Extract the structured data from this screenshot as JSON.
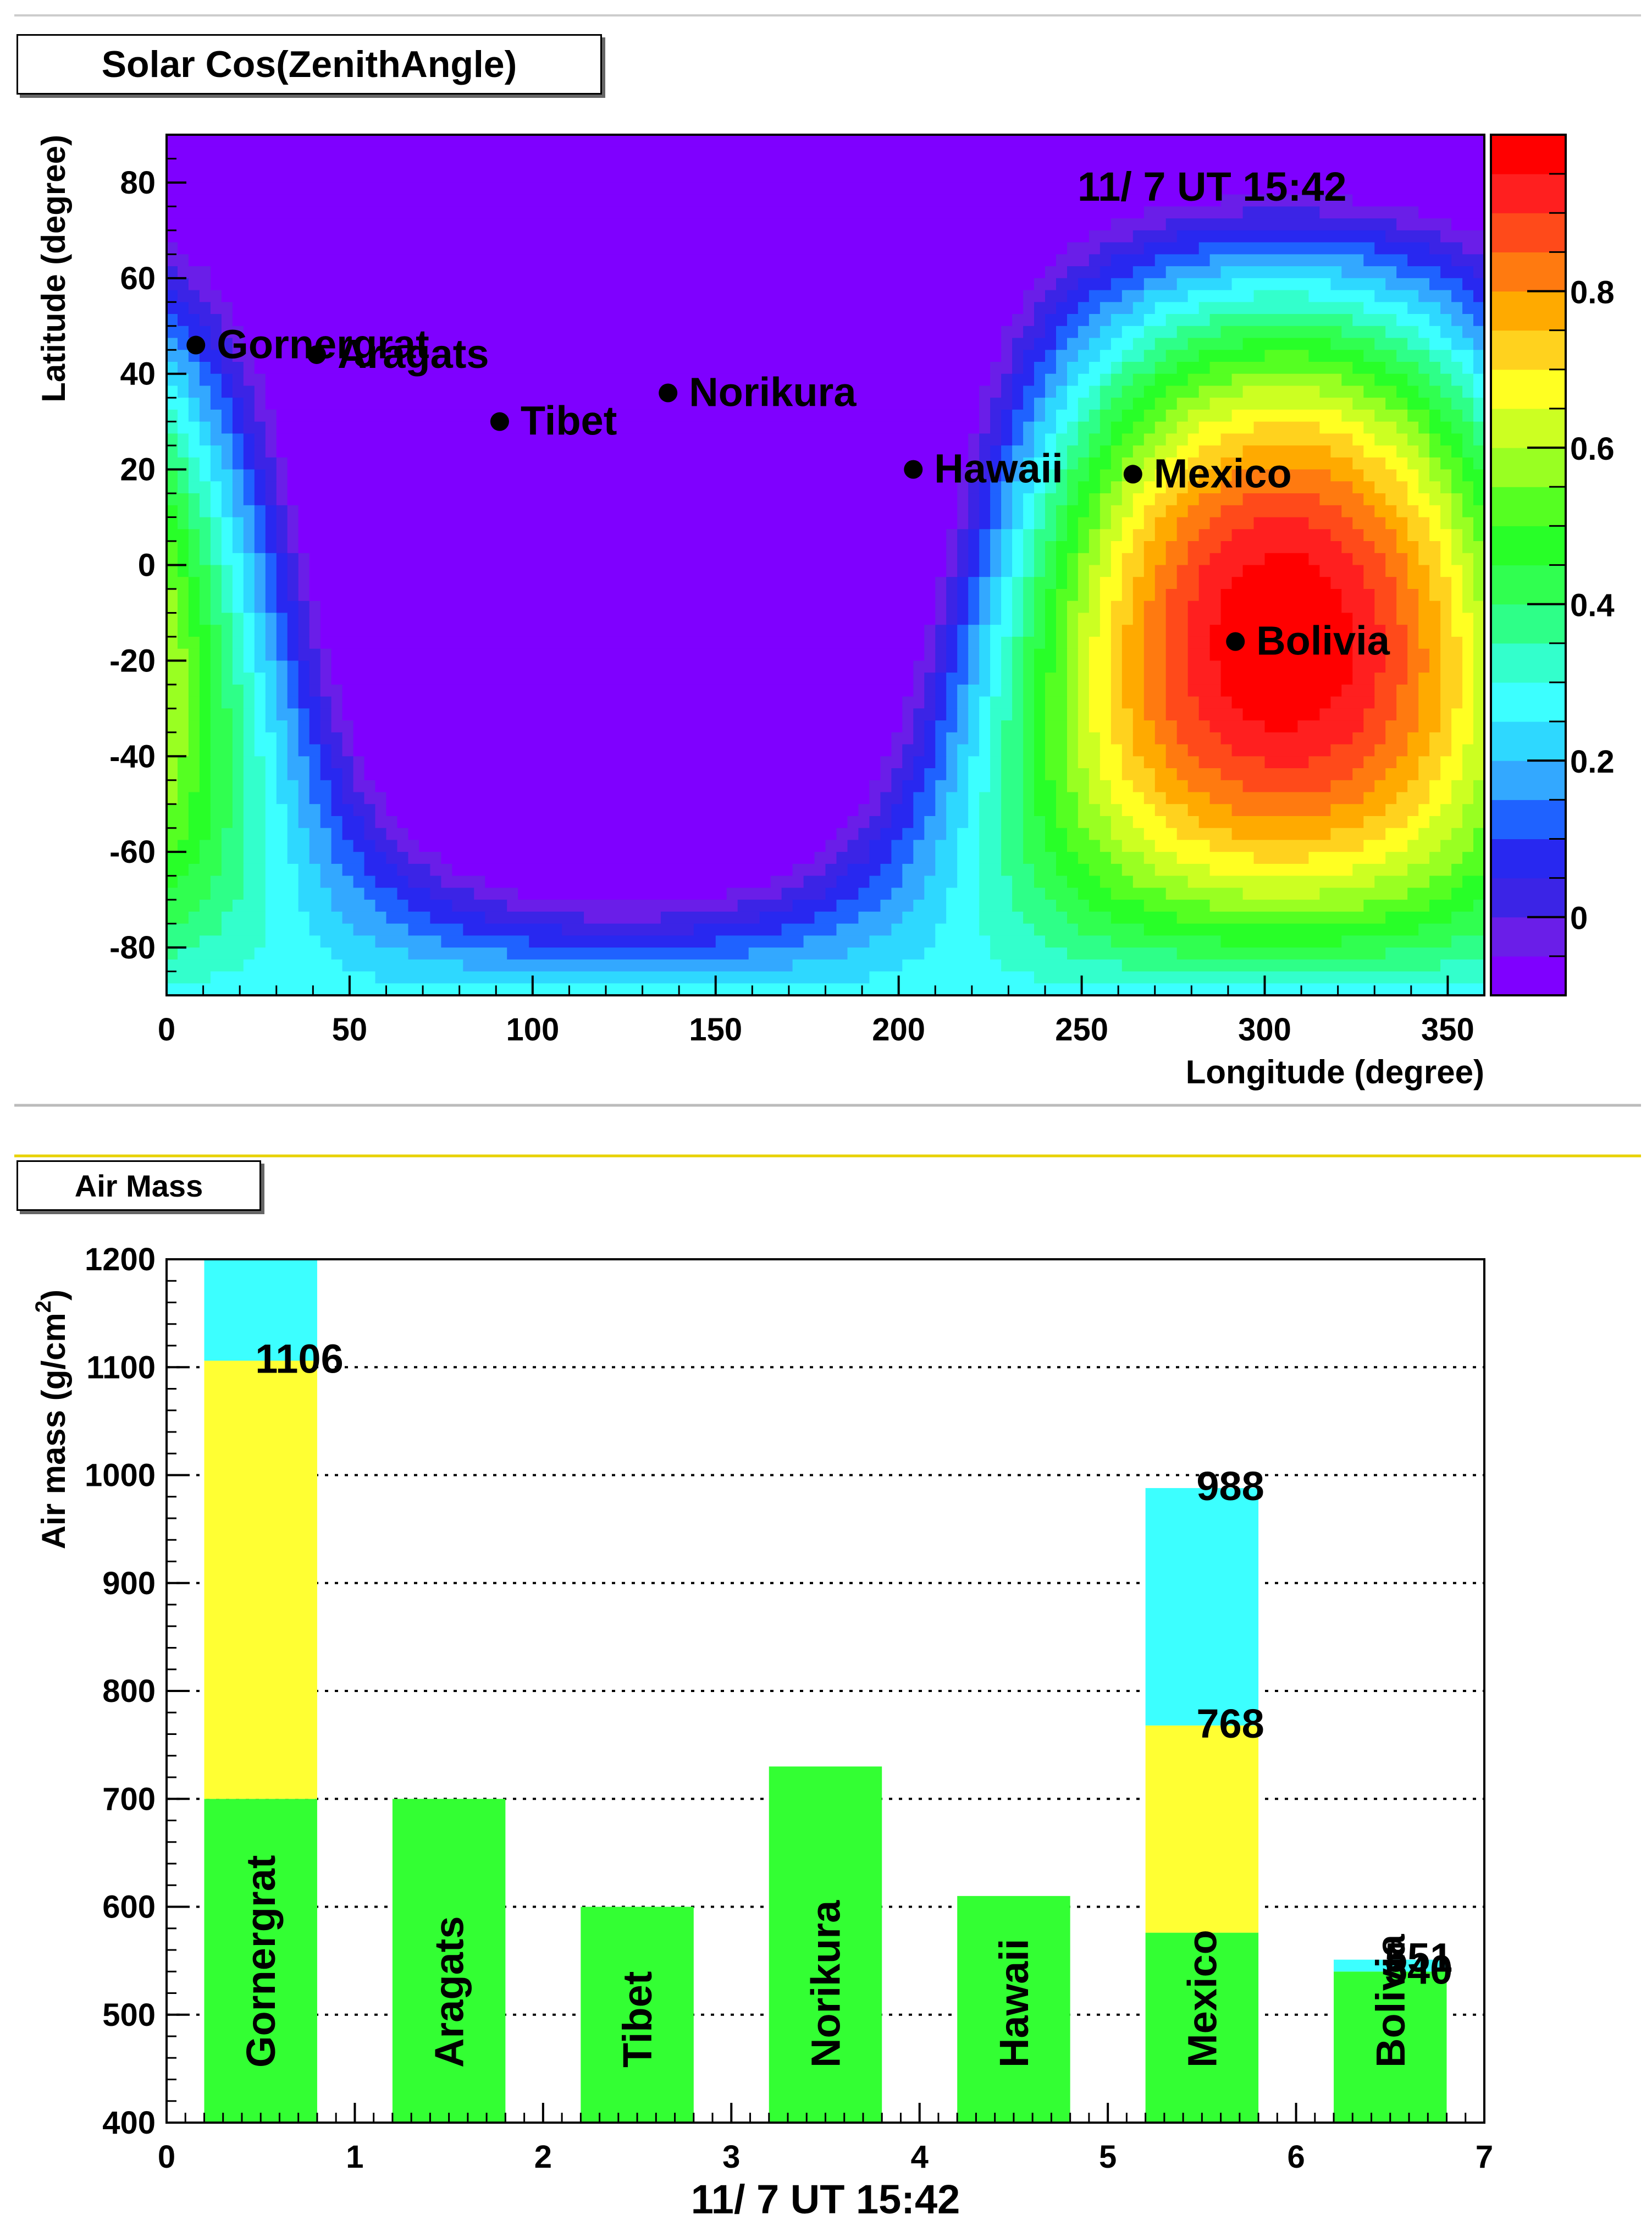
{
  "chart_data": [
    {
      "type": "heatmap",
      "title": "Solar Cos(ZenithAngle)",
      "xlabel": "Longitude (degree)",
      "ylabel": "Latitude (degree)",
      "annotation": "11/ 7  UT 15:42",
      "xlim": [
        0,
        360
      ],
      "ylim": [
        -90,
        90
      ],
      "zlim": [
        -0.1,
        1.0
      ],
      "xticks": [
        0,
        50,
        100,
        150,
        200,
        250,
        300,
        350
      ],
      "yticks": [
        -80,
        -60,
        -40,
        -20,
        0,
        20,
        40,
        60,
        80
      ],
      "colorbar_ticks": [
        0,
        0.2,
        0.4,
        0.6,
        0.8
      ],
      "colorbar_tick_labels": [
        "0",
        "0.2",
        "0.4",
        "0.6",
        "0.8"
      ],
      "subsolar_point": {
        "lon": 305,
        "lat": -16
      },
      "colors": [
        "#7f00ff",
        "#6a1ee8",
        "#3b24e6",
        "#2828f0",
        "#1f62ff",
        "#33a8ff",
        "#2ed8ff",
        "#3cffff",
        "#33ffcc",
        "#2eff88",
        "#30ff50",
        "#28ff28",
        "#55ff22",
        "#99ff22",
        "#ccff22",
        "#ffff22",
        "#ffd21e",
        "#ffaa00",
        "#ff7a10",
        "#ff4a1a",
        "#ff1f1f",
        "#ff0000"
      ],
      "sites": [
        {
          "name": "Gornergrat",
          "lon": 8,
          "lat": 46
        },
        {
          "name": "Aragats",
          "lon": 41,
          "lat": 44
        },
        {
          "name": "Tibet",
          "lon": 91,
          "lat": 30
        },
        {
          "name": "Norikura",
          "lon": 137,
          "lat": 36
        },
        {
          "name": "Hawaii",
          "lon": 204,
          "lat": 20
        },
        {
          "name": "Mexico",
          "lon": 264,
          "lat": 19
        },
        {
          "name": "Bolivia",
          "lon": 292,
          "lat": -16
        }
      ]
    },
    {
      "type": "bar",
      "title": "Air Mass",
      "xlabel": "11/ 7  UT 15:42",
      "ylabel": "Air mass (g/cm",
      "ylabel_sup": "2",
      "ylabel_end": ")",
      "xlim": [
        0,
        7
      ],
      "ylim": [
        400,
        1200
      ],
      "xticks": [
        0,
        1,
        2,
        3,
        4,
        5,
        6,
        7
      ],
      "yticks": [
        400,
        500,
        600,
        700,
        800,
        900,
        1000,
        1100,
        1200
      ],
      "grid": "horizontal dotted",
      "bars": [
        {
          "name": "Gornergrat",
          "x0": 0.2,
          "x1": 0.8,
          "segments": [
            {
              "top": 700,
              "color": "#33ff33"
            },
            {
              "top": 1106,
              "color": "#ffff33"
            },
            {
              "top": 1200,
              "color": "#3cffff"
            }
          ],
          "labels": [
            "1106"
          ],
          "label_values": [
            1106
          ]
        },
        {
          "name": "Aragats",
          "x0": 1.2,
          "x1": 1.8,
          "segments": [
            {
              "top": 700,
              "color": "#33ff33"
            }
          ],
          "labels": [],
          "label_values": []
        },
        {
          "name": "Tibet",
          "x0": 2.2,
          "x1": 2.8,
          "segments": [
            {
              "top": 600,
              "color": "#33ff33"
            }
          ],
          "labels": [],
          "label_values": []
        },
        {
          "name": "Norikura",
          "x0": 3.2,
          "x1": 3.8,
          "segments": [
            {
              "top": 730,
              "color": "#33ff33"
            }
          ],
          "labels": [],
          "label_values": []
        },
        {
          "name": "Hawaii",
          "x0": 4.2,
          "x1": 4.8,
          "segments": [
            {
              "top": 610,
              "color": "#33ff33"
            }
          ],
          "labels": [],
          "label_values": []
        },
        {
          "name": "Mexico",
          "x0": 5.2,
          "x1": 5.8,
          "segments": [
            {
              "top": 576,
              "color": "#33ff33"
            },
            {
              "top": 768,
              "color": "#ffff33"
            },
            {
              "top": 988,
              "color": "#3cffff"
            }
          ],
          "labels": [
            "768",
            "988"
          ],
          "label_values": [
            768,
            988
          ]
        },
        {
          "name": "Bolivia",
          "x0": 6.2,
          "x1": 6.8,
          "segments": [
            {
              "top": 540,
              "color": "#33ff33"
            },
            {
              "top": 551,
              "color": "#3cffff"
            }
          ],
          "labels": [
            "540",
            "551"
          ],
          "label_values": [
            540,
            551
          ]
        }
      ]
    }
  ]
}
